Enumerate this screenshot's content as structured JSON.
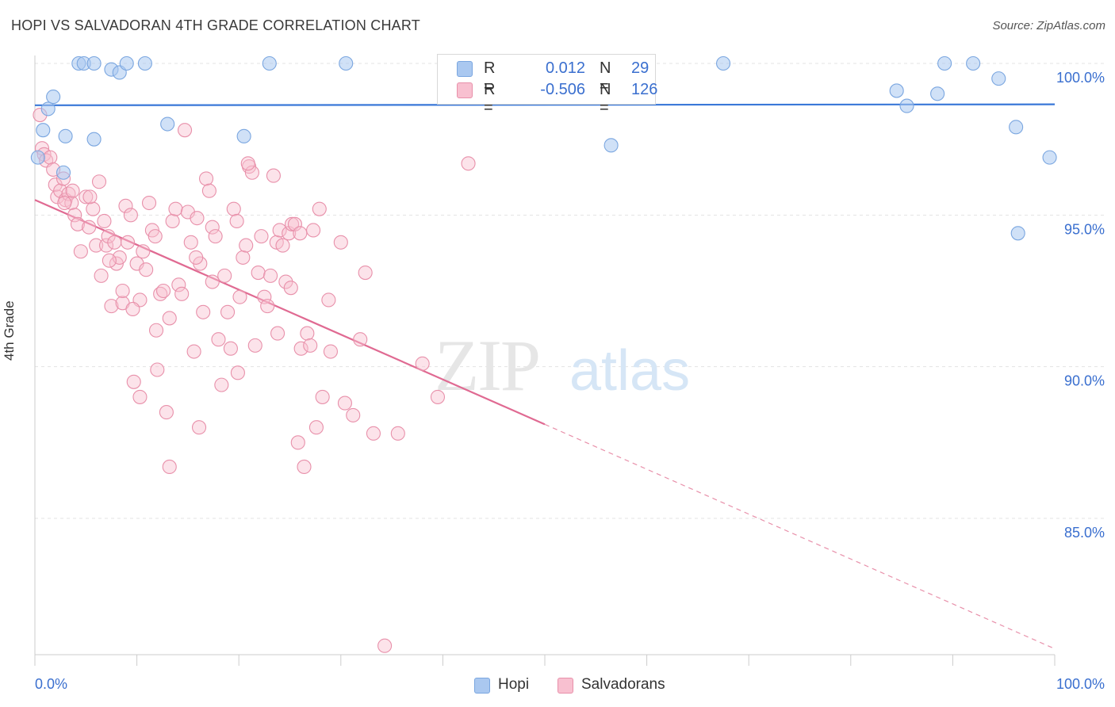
{
  "title": "HOPI VS SALVADORAN 4TH GRADE CORRELATION CHART",
  "source": "Source: ZipAtlas.com",
  "watermark": {
    "zip": "ZIP",
    "atlas": "atlas"
  },
  "legend": {
    "rows": [
      {
        "r_label": "R =",
        "r_value": "0.012",
        "n_label": "N =",
        "n_value": "29",
        "color": "#aac8f0",
        "border": "#7aa6e0"
      },
      {
        "r_label": "R =",
        "r_value": "-0.506",
        "n_label": "N =",
        "n_value": "126",
        "color": "#f8c0d0",
        "border": "#e890aa"
      }
    ]
  },
  "bottom_legend": [
    {
      "label": "Hopi",
      "color": "#aac8f0",
      "border": "#7aa6e0"
    },
    {
      "label": "Salvadorans",
      "color": "#f8c0d0",
      "border": "#e890aa"
    }
  ],
  "chart_data": {
    "type": "scatter",
    "title": "HOPI VS SALVADORAN 4TH GRADE CORRELATION CHART",
    "xlabel": "",
    "ylabel": "4th Grade",
    "xlim": [
      0,
      100
    ],
    "ylim": [
      80.5,
      100.7
    ],
    "x_tick_labels": {
      "left": "0.0%",
      "right": "100.0%"
    },
    "y_ticks": [
      {
        "value": 100,
        "label": "100.0%"
      },
      {
        "value": 95,
        "label": "95.0%"
      },
      {
        "value": 90,
        "label": "90.0%"
      },
      {
        "value": 85,
        "label": "85.0%"
      }
    ],
    "grid": true,
    "series": [
      {
        "name": "Hopi",
        "color": "#7aa6e0",
        "fill": "#aac8f0",
        "trend": {
          "x0": 0,
          "y0": 98.62,
          "x1": 100,
          "y1": 98.65,
          "solid_until": 100
        },
        "points": [
          [
            0.3,
            96.9
          ],
          [
            0.8,
            97.8
          ],
          [
            1.3,
            98.5
          ],
          [
            1.8,
            98.9
          ],
          [
            2.8,
            96.4
          ],
          [
            3.0,
            97.6
          ],
          [
            4.3,
            100.0
          ],
          [
            4.8,
            100.0
          ],
          [
            5.8,
            100.0
          ],
          [
            5.8,
            97.5
          ],
          [
            7.5,
            99.8
          ],
          [
            8.3,
            99.7
          ],
          [
            9.0,
            100.0
          ],
          [
            10.8,
            100.0
          ],
          [
            13.0,
            98.0
          ],
          [
            20.5,
            97.6
          ],
          [
            23.0,
            100.0
          ],
          [
            30.5,
            100.0
          ],
          [
            56.5,
            97.3
          ],
          [
            67.5,
            100.0
          ],
          [
            84.5,
            99.1
          ],
          [
            85.5,
            98.6
          ],
          [
            88.5,
            99.0
          ],
          [
            89.2,
            100.0
          ],
          [
            92.0,
            100.0
          ],
          [
            94.5,
            99.5
          ],
          [
            96.2,
            97.9
          ],
          [
            96.4,
            94.4
          ],
          [
            99.5,
            96.9
          ]
        ]
      },
      {
        "name": "Salvadorans",
        "color": "#e890aa",
        "fill": "#f8c0d0",
        "trend": {
          "x0": 0,
          "y0": 95.5,
          "x1": 100,
          "y1": 80.7,
          "solid_until": 50
        },
        "points": [
          [
            0.5,
            98.3
          ],
          [
            0.7,
            97.2
          ],
          [
            0.9,
            97.0
          ],
          [
            1.1,
            96.8
          ],
          [
            1.5,
            96.9
          ],
          [
            1.8,
            96.5
          ],
          [
            2.0,
            96.0
          ],
          [
            2.2,
            95.6
          ],
          [
            2.5,
            95.8
          ],
          [
            2.8,
            96.2
          ],
          [
            3.0,
            95.5
          ],
          [
            3.3,
            95.7
          ],
          [
            3.6,
            95.4
          ],
          [
            3.9,
            95.0
          ],
          [
            4.2,
            94.7
          ],
          [
            4.5,
            93.8
          ],
          [
            5.0,
            95.6
          ],
          [
            5.3,
            94.6
          ],
          [
            5.7,
            95.2
          ],
          [
            6.0,
            94.0
          ],
          [
            6.3,
            96.1
          ],
          [
            6.5,
            93.0
          ],
          [
            6.8,
            94.8
          ],
          [
            7.0,
            94.0
          ],
          [
            7.2,
            94.3
          ],
          [
            7.5,
            92.0
          ],
          [
            7.8,
            94.1
          ],
          [
            8.0,
            93.4
          ],
          [
            8.3,
            93.6
          ],
          [
            8.6,
            92.1
          ],
          [
            8.9,
            95.3
          ],
          [
            9.1,
            94.1
          ],
          [
            9.4,
            95.0
          ],
          [
            9.7,
            89.5
          ],
          [
            10.0,
            93.4
          ],
          [
            10.3,
            92.2
          ],
          [
            10.6,
            93.8
          ],
          [
            10.9,
            93.2
          ],
          [
            11.2,
            95.4
          ],
          [
            11.5,
            94.5
          ],
          [
            11.8,
            94.3
          ],
          [
            12.0,
            89.9
          ],
          [
            12.3,
            92.4
          ],
          [
            12.6,
            92.5
          ],
          [
            12.9,
            88.5
          ],
          [
            13.2,
            91.6
          ],
          [
            13.5,
            94.8
          ],
          [
            13.8,
            95.2
          ],
          [
            14.1,
            92.7
          ],
          [
            14.4,
            92.4
          ],
          [
            14.7,
            97.8
          ],
          [
            15.0,
            95.1
          ],
          [
            15.3,
            94.1
          ],
          [
            15.6,
            90.5
          ],
          [
            15.9,
            94.9
          ],
          [
            16.2,
            93.4
          ],
          [
            16.5,
            91.8
          ],
          [
            16.8,
            96.2
          ],
          [
            17.1,
            95.8
          ],
          [
            17.4,
            94.6
          ],
          [
            17.7,
            94.3
          ],
          [
            18.0,
            90.9
          ],
          [
            18.3,
            89.4
          ],
          [
            18.6,
            93.0
          ],
          [
            18.9,
            91.8
          ],
          [
            19.2,
            90.6
          ],
          [
            19.5,
            95.2
          ],
          [
            19.8,
            94.8
          ],
          [
            20.1,
            92.3
          ],
          [
            20.4,
            93.6
          ],
          [
            20.7,
            94.0
          ],
          [
            21.0,
            96.6
          ],
          [
            21.3,
            96.4
          ],
          [
            21.6,
            90.7
          ],
          [
            21.9,
            93.1
          ],
          [
            22.2,
            94.3
          ],
          [
            22.5,
            92.3
          ],
          [
            22.8,
            92.0
          ],
          [
            23.1,
            93.0
          ],
          [
            23.4,
            96.3
          ],
          [
            23.7,
            94.1
          ],
          [
            24.0,
            94.5
          ],
          [
            24.3,
            94.0
          ],
          [
            24.6,
            92.8
          ],
          [
            24.9,
            94.4
          ],
          [
            25.2,
            94.7
          ],
          [
            25.5,
            94.7
          ],
          [
            25.8,
            87.5
          ],
          [
            26.1,
            90.6
          ],
          [
            26.4,
            86.7
          ],
          [
            26.7,
            91.1
          ],
          [
            27.0,
            90.7
          ],
          [
            27.3,
            94.5
          ],
          [
            27.6,
            88.0
          ],
          [
            27.9,
            95.2
          ],
          [
            28.2,
            89.0
          ],
          [
            29.0,
            90.5
          ],
          [
            30.0,
            94.1
          ],
          [
            30.4,
            88.8
          ],
          [
            31.2,
            88.4
          ],
          [
            32.4,
            93.1
          ],
          [
            33.2,
            87.8
          ],
          [
            34.3,
            80.8
          ],
          [
            35.6,
            87.8
          ],
          [
            38.0,
            90.1
          ],
          [
            39.5,
            89.0
          ],
          [
            42.5,
            96.7
          ],
          [
            20.9,
            96.7
          ],
          [
            16.1,
            88.0
          ],
          [
            13.2,
            86.7
          ],
          [
            10.3,
            89.0
          ],
          [
            8.6,
            92.5
          ],
          [
            7.3,
            93.5
          ],
          [
            5.4,
            95.6
          ],
          [
            3.7,
            95.8
          ],
          [
            2.9,
            95.4
          ],
          [
            19.9,
            89.8
          ],
          [
            17.4,
            92.8
          ],
          [
            15.8,
            93.6
          ],
          [
            23.8,
            91.1
          ],
          [
            25.1,
            92.6
          ],
          [
            28.8,
            92.2
          ],
          [
            31.9,
            90.9
          ],
          [
            11.9,
            91.2
          ],
          [
            9.6,
            91.9
          ],
          [
            26.0,
            94.4
          ]
        ]
      }
    ]
  }
}
